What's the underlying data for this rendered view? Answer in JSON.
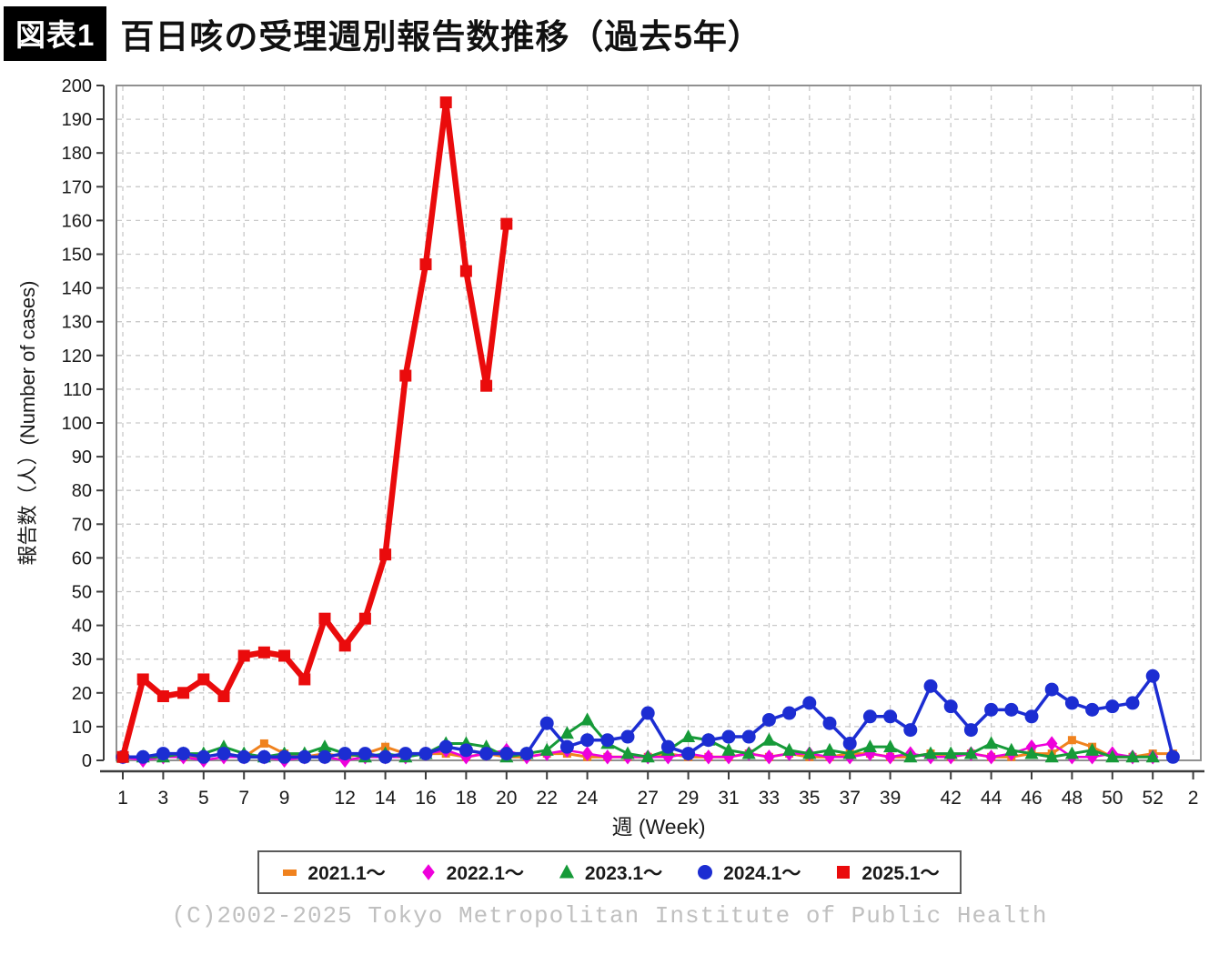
{
  "figure_label": "図表1",
  "title": "百日咳の受理週別報告数推移（過去5年）",
  "copyright": "(C)2002-2025 Tokyo Metropolitan Institute of Public Health",
  "chart_data": {
    "type": "line",
    "title": "百日咳の受理週別報告数推移（過去5年）",
    "xlabel": "週 (Week)",
    "ylabel": "報告数（人）(Number of cases)",
    "ylim": [
      0,
      200
    ],
    "ytick_step": 10,
    "grid": true,
    "legend_position": "bottom-center",
    "x_axis_positions": 54,
    "xtick_weeks": [
      1,
      3,
      5,
      7,
      9,
      12,
      14,
      16,
      18,
      20,
      22,
      24,
      27,
      29,
      31,
      33,
      35,
      37,
      39,
      42,
      44,
      46,
      48,
      50,
      52,
      54
    ],
    "xtick_labels": [
      "1",
      "3",
      "5",
      "7",
      "9",
      "12",
      "14",
      "16",
      "18",
      "20",
      "22",
      "24",
      "27",
      "29",
      "31",
      "33",
      "35",
      "37",
      "39",
      "42",
      "44",
      "46",
      "48",
      "50",
      "52",
      "2"
    ],
    "series": [
      {
        "name": "2021.1～",
        "color": "#f0821e",
        "marker": "square-small",
        "values": [
          1,
          1,
          2,
          1,
          1,
          2,
          1,
          5,
          2,
          1,
          2,
          1,
          2,
          4,
          2,
          2,
          2,
          1,
          2,
          1,
          1,
          2,
          2,
          1,
          1,
          1,
          1,
          2,
          1,
          1,
          1,
          2,
          1,
          2,
          1,
          1,
          2,
          2,
          1,
          1,
          2,
          1,
          2,
          1,
          1,
          2,
          2,
          6,
          4,
          1,
          1,
          2,
          2
        ]
      },
      {
        "name": "2022.1～",
        "color": "#ee00db",
        "marker": "diamond",
        "values": [
          1,
          0,
          1,
          1,
          0,
          1,
          1,
          1,
          0,
          1,
          1,
          0,
          1,
          1,
          1,
          2,
          3,
          1,
          2,
          3,
          1,
          2,
          3,
          2,
          1,
          1,
          1,
          1,
          2,
          1,
          1,
          2,
          1,
          2,
          2,
          1,
          1,
          2,
          1,
          2,
          1,
          1,
          2,
          1,
          2,
          4,
          5,
          1,
          1,
          2,
          1,
          1
        ]
      },
      {
        "name": "2023.1～",
        "color": "#169a38",
        "marker": "triangle",
        "values": [
          1,
          1,
          1,
          2,
          2,
          4,
          2,
          1,
          2,
          2,
          4,
          2,
          1,
          2,
          1,
          2,
          5,
          5,
          4,
          1,
          2,
          3,
          8,
          12,
          5,
          2,
          1,
          3,
          7,
          6,
          3,
          2,
          6,
          3,
          2,
          3,
          2,
          4,
          4,
          1,
          2,
          2,
          2,
          5,
          3,
          2,
          1,
          2,
          3,
          1,
          1,
          1
        ]
      },
      {
        "name": "2024.1～",
        "color": "#1c2dd2",
        "marker": "circle",
        "values": [
          1,
          1,
          2,
          2,
          1,
          2,
          1,
          1,
          1,
          1,
          1,
          2,
          2,
          1,
          2,
          2,
          4,
          3,
          2,
          2,
          2,
          11,
          4,
          6,
          6,
          7,
          14,
          4,
          2,
          6,
          7,
          7,
          12,
          14,
          17,
          11,
          5,
          13,
          13,
          9,
          22,
          16,
          9,
          15,
          15,
          13,
          21,
          17,
          15,
          16,
          17,
          25,
          1
        ]
      },
      {
        "name": "2025.1～",
        "color": "#ea0b0c",
        "marker": "square",
        "values": [
          1,
          24,
          19,
          20,
          24,
          19,
          31,
          32,
          31,
          24,
          42,
          34,
          42,
          61,
          114,
          147,
          195,
          145,
          111,
          159
        ]
      }
    ]
  }
}
